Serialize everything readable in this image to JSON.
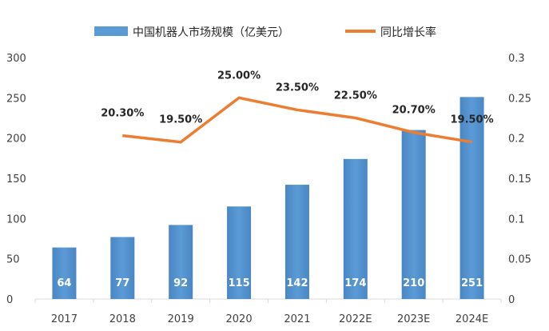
{
  "chart_data": {
    "type": "bar",
    "categories": [
      "2017",
      "2018",
      "2019",
      "2020",
      "2021",
      "2022E",
      "2023E",
      "2024E"
    ],
    "series": [
      {
        "name": "中国机器人市场规模（亿美元）",
        "type": "bar",
        "axis": "left",
        "color": "#5b9bd5",
        "values": [
          64,
          77,
          92,
          115,
          142,
          174,
          210,
          251
        ],
        "value_labels": [
          "64",
          "77",
          "92",
          "115",
          "142",
          "174",
          "210",
          "251"
        ]
      },
      {
        "name": "同比增长率",
        "type": "line",
        "axis": "right",
        "color": "#ed7d31",
        "values": [
          null,
          0.203,
          0.195,
          0.25,
          0.235,
          0.225,
          0.207,
          0.195
        ],
        "value_labels": [
          null,
          "20.30%",
          "19.50%",
          "25.00%",
          "23.50%",
          "22.50%",
          "20.70%",
          "19.50%"
        ]
      }
    ],
    "y_left": {
      "range": [
        0,
        300
      ],
      "ticks": [
        "0",
        "50",
        "100",
        "150",
        "200",
        "250",
        "300"
      ]
    },
    "y_right": {
      "range": [
        0,
        0.3
      ],
      "ticks": [
        "0",
        "0.05",
        "0.1",
        "0.15",
        "0.2",
        "0.25",
        "0.3"
      ]
    },
    "legend_position": "top-center",
    "grid": false
  }
}
